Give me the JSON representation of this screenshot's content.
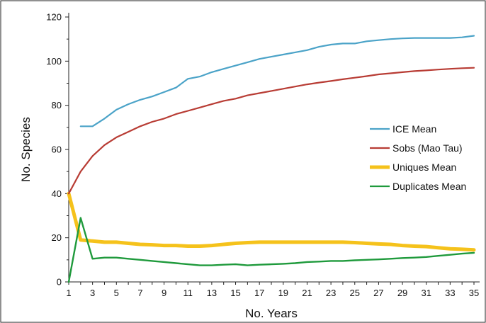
{
  "chart_data": {
    "type": "line",
    "xlabel": "No. Years",
    "ylabel": "No. Species",
    "xlim": [
      1,
      35
    ],
    "ylim": [
      0,
      120
    ],
    "xticks": [
      1,
      3,
      5,
      7,
      9,
      11,
      13,
      15,
      17,
      19,
      21,
      23,
      25,
      27,
      29,
      31,
      33,
      35
    ],
    "yticks": [
      0,
      20,
      40,
      60,
      80,
      100,
      120
    ],
    "grid": false,
    "legend_position": "right",
    "series": [
      {
        "name": "ICE Mean",
        "color": "#4ba3c8",
        "x": [
          2,
          3,
          4,
          5,
          6,
          7,
          8,
          9,
          10,
          11,
          12,
          13,
          14,
          15,
          16,
          17,
          18,
          19,
          20,
          21,
          22,
          23,
          24,
          25,
          26,
          27,
          28,
          29,
          30,
          31,
          32,
          33,
          34,
          35
        ],
        "values": [
          70.5,
          70.5,
          74,
          78,
          80.5,
          82.5,
          84,
          86,
          88,
          92,
          93,
          95,
          96.5,
          98,
          99.5,
          101,
          102,
          103,
          104,
          105,
          106.5,
          107.5,
          108,
          108,
          109,
          109.5,
          110,
          110.3,
          110.5,
          110.5,
          110.5,
          110.5,
          110.8,
          111.5
        ]
      },
      {
        "name": "Sobs (Mao Tau)",
        "color": "#b83c34",
        "x": [
          1,
          2,
          3,
          4,
          5,
          6,
          7,
          8,
          9,
          10,
          11,
          12,
          13,
          14,
          15,
          16,
          17,
          18,
          19,
          20,
          21,
          22,
          23,
          24,
          25,
          26,
          27,
          28,
          29,
          30,
          31,
          32,
          33,
          34,
          35
        ],
        "values": [
          40,
          50,
          57,
          62,
          65.5,
          68,
          70.5,
          72.5,
          74,
          76,
          77.5,
          79,
          80.5,
          82,
          83,
          84.5,
          85.5,
          86.5,
          87.5,
          88.5,
          89.5,
          90.3,
          91,
          91.8,
          92.5,
          93.2,
          94,
          94.5,
          95,
          95.5,
          95.8,
          96.2,
          96.5,
          96.8,
          97
        ]
      },
      {
        "name": "Uniques Mean",
        "color": "#f5c21b",
        "x": [
          1,
          2,
          3,
          4,
          5,
          6,
          7,
          8,
          9,
          10,
          11,
          12,
          13,
          14,
          15,
          16,
          17,
          18,
          19,
          20,
          21,
          22,
          23,
          24,
          25,
          26,
          27,
          28,
          29,
          30,
          31,
          32,
          33,
          34,
          35
        ],
        "values": [
          40,
          19,
          18.5,
          18,
          18,
          17.5,
          17,
          16.8,
          16.5,
          16.5,
          16.2,
          16.2,
          16.5,
          17,
          17.5,
          17.8,
          18,
          18,
          18,
          18,
          18,
          18,
          18,
          18,
          17.8,
          17.5,
          17.2,
          17,
          16.5,
          16.2,
          16,
          15.5,
          15,
          14.8,
          14.5
        ]
      },
      {
        "name": "Duplicates Mean",
        "color": "#1f9a3c",
        "x": [
          1,
          2,
          3,
          4,
          5,
          6,
          7,
          8,
          9,
          10,
          11,
          12,
          13,
          14,
          15,
          16,
          17,
          18,
          19,
          20,
          21,
          22,
          23,
          24,
          25,
          26,
          27,
          28,
          29,
          30,
          31,
          32,
          33,
          34,
          35
        ],
        "values": [
          0,
          29,
          10.5,
          11,
          11,
          10.5,
          10,
          9.5,
          9,
          8.5,
          8,
          7.5,
          7.5,
          7.8,
          8,
          7.5,
          7.8,
          8,
          8.2,
          8.5,
          9,
          9.2,
          9.5,
          9.5,
          9.8,
          10,
          10.2,
          10.5,
          10.8,
          11,
          11.3,
          11.8,
          12.3,
          12.8,
          13.2
        ]
      }
    ]
  }
}
